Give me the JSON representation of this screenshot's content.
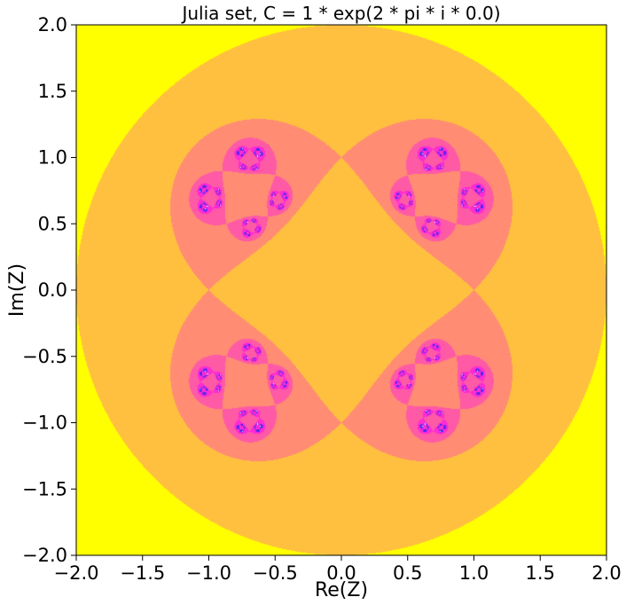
{
  "chart_data": {
    "type": "heatmap",
    "title": "Julia set, C = 1 * exp(2 * pi * i * 0.0)",
    "xlabel": "Re(Z)",
    "ylabel": "Im(Z)",
    "xlim": [
      -2.0,
      2.0
    ],
    "ylim": [
      -2.0,
      2.0
    ],
    "xticks": [
      -2.0,
      -1.5,
      -1.0,
      -0.5,
      0.0,
      0.5,
      1.0,
      1.5,
      2.0
    ],
    "yticks": [
      -2.0,
      -1.5,
      -1.0,
      -0.5,
      0.0,
      0.5,
      1.0,
      1.5,
      2.0
    ],
    "xtick_labels": [
      "−2.0",
      "−1.5",
      "−1.0",
      "−0.5",
      "0.0",
      "0.5",
      "1.0",
      "1.5",
      "2.0"
    ],
    "ytick_labels": [
      "−2.0",
      "−1.5",
      "−1.0",
      "−0.5",
      "0.0",
      "0.5",
      "1.0",
      "1.5",
      "2.0"
    ],
    "grid": false,
    "colormap": "spring",
    "colors": [
      "#ffff00",
      "#ffc040",
      "#ff8c73",
      "#ff5aa5",
      "#ff2bd4",
      "#8a2be2",
      "#3a20ff"
    ],
    "background": "#ffffff",
    "fractal": {
      "c_re": 1.0,
      "c_im": 0.0,
      "map": "z^2 + c/z^2 (McMullen-type)",
      "escape_radius": 2.0,
      "max_iter": 8
    }
  }
}
